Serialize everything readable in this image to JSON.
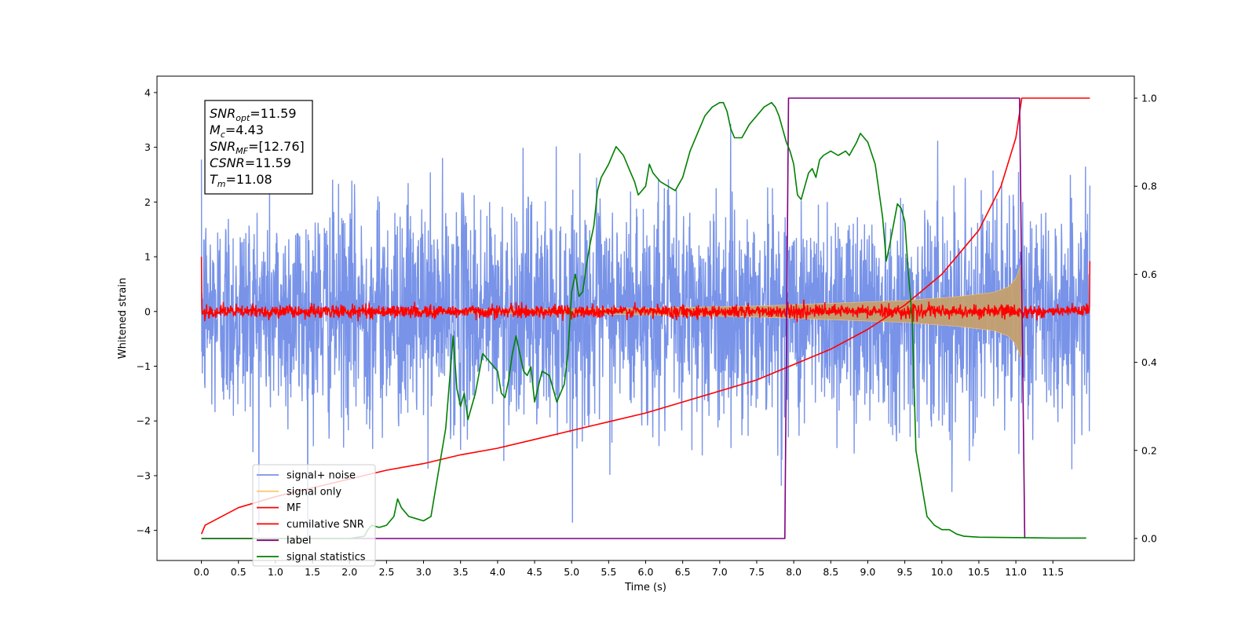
{
  "chart_data": {
    "type": "line",
    "xlabel": "Time (s)",
    "ylabel": "Whitened strain",
    "xlim": [
      -0.6,
      12.6
    ],
    "ylim": [
      -4.55,
      4.3
    ],
    "y2lim": [
      -0.05,
      1.05
    ],
    "x_ticks": [
      "0.0",
      "0.5",
      "1.0",
      "1.5",
      "2.0",
      "2.5",
      "3.0",
      "3.5",
      "4.0",
      "4.5",
      "5.0",
      "5.5",
      "6.0",
      "6.5",
      "7.0",
      "7.5",
      "8.0",
      "8.5",
      "9.0",
      "9.5",
      "10.0",
      "10.5",
      "11.0",
      "11.5"
    ],
    "y_ticks": [
      "−4",
      "−3",
      "−2",
      "−1",
      "0",
      "1",
      "2",
      "3",
      "4"
    ],
    "y2_ticks": [
      "0.0",
      "0.2",
      "0.4",
      "0.6",
      "0.8",
      "1.0"
    ],
    "grid": false,
    "legend_position": "lower-left",
    "legend": [
      {
        "label": "signal+ noise",
        "color": "#7893e8"
      },
      {
        "label": "signal only",
        "color": "#ffc870"
      },
      {
        "label": "MF",
        "color": "#ff0000"
      },
      {
        "label": "cumilative SNR",
        "color": "#ff0000"
      },
      {
        "label": "label",
        "color": "#800080"
      },
      {
        "label": "signal statistics",
        "color": "#008000"
      }
    ],
    "info_box": [
      {
        "main": "SNR",
        "sub": "opt",
        "rest": "=11.59"
      },
      {
        "main": "M",
        "sub": "c",
        "rest": "=4.43"
      },
      {
        "main": "SNR",
        "sub": "MF",
        "rest": "=[12.76]"
      },
      {
        "main": "CSNR",
        "sub": "",
        "rest": "=11.59"
      },
      {
        "main": "T",
        "sub": "m",
        "rest": "=11.08"
      }
    ],
    "series": [
      {
        "name": "signal+ noise",
        "axis": "left",
        "color": "#7893e8",
        "kind": "noise",
        "x_start": 0.0,
        "x_end": 12.0,
        "amplitude_sigma": 1.0,
        "envelope_min": 2.2,
        "envelope_max": 3.9
      },
      {
        "name": "signal only",
        "axis": "left",
        "color": "#ffc870",
        "kind": "chirp_envelope",
        "envelope": [
          [
            0.0,
            0.0
          ],
          [
            3.0,
            0.02
          ],
          [
            6.0,
            0.06
          ],
          [
            7.5,
            0.1
          ],
          [
            8.5,
            0.15
          ],
          [
            9.5,
            0.2
          ],
          [
            10.2,
            0.27
          ],
          [
            10.7,
            0.35
          ],
          [
            10.9,
            0.45
          ],
          [
            11.0,
            0.6
          ],
          [
            11.08,
            0.9
          ],
          [
            11.1,
            0.0
          ]
        ]
      },
      {
        "name": "MF",
        "axis": "left",
        "color": "#ff0000",
        "kind": "mf",
        "x_start": 0.0,
        "x_end": 12.0,
        "start_value": 1.0,
        "end_value": 0.92,
        "noise_sigma": 0.06
      },
      {
        "name": "cumilative SNR",
        "axis": "right",
        "color": "#ff0000",
        "points": [
          [
            0.0,
            0.01
          ],
          [
            0.05,
            0.03
          ],
          [
            0.5,
            0.07
          ],
          [
            1.0,
            0.095
          ],
          [
            1.5,
            0.115
          ],
          [
            2.0,
            0.135
          ],
          [
            2.5,
            0.155
          ],
          [
            3.0,
            0.17
          ],
          [
            3.5,
            0.19
          ],
          [
            4.0,
            0.205
          ],
          [
            4.5,
            0.225
          ],
          [
            5.0,
            0.245
          ],
          [
            5.5,
            0.265
          ],
          [
            6.0,
            0.285
          ],
          [
            6.5,
            0.31
          ],
          [
            7.0,
            0.335
          ],
          [
            7.5,
            0.36
          ],
          [
            8.0,
            0.395
          ],
          [
            8.5,
            0.43
          ],
          [
            9.0,
            0.475
          ],
          [
            9.5,
            0.53
          ],
          [
            10.0,
            0.6
          ],
          [
            10.5,
            0.7
          ],
          [
            10.8,
            0.8
          ],
          [
            11.0,
            0.91
          ],
          [
            11.08,
            1.0
          ],
          [
            12.0,
            1.0
          ]
        ]
      },
      {
        "name": "label",
        "axis": "right",
        "color": "#800080",
        "points": [
          [
            0.0,
            0.0
          ],
          [
            7.88,
            0.0
          ],
          [
            7.93,
            1.0
          ],
          [
            11.05,
            1.0
          ],
          [
            11.12,
            0.0
          ]
        ]
      },
      {
        "name": "signal statistics",
        "axis": "right",
        "color": "#008000",
        "points": [
          [
            0.0,
            0.0
          ],
          [
            1.0,
            0.0
          ],
          [
            2.0,
            0.0
          ],
          [
            2.2,
            0.005
          ],
          [
            2.25,
            0.02
          ],
          [
            2.3,
            0.03
          ],
          [
            2.4,
            0.025
          ],
          [
            2.5,
            0.03
          ],
          [
            2.6,
            0.05
          ],
          [
            2.65,
            0.09
          ],
          [
            2.7,
            0.07
          ],
          [
            2.8,
            0.05
          ],
          [
            2.9,
            0.045
          ],
          [
            3.0,
            0.04
          ],
          [
            3.1,
            0.05
          ],
          [
            3.15,
            0.1
          ],
          [
            3.2,
            0.15
          ],
          [
            3.3,
            0.25
          ],
          [
            3.4,
            0.46
          ],
          [
            3.45,
            0.34
          ],
          [
            3.5,
            0.3
          ],
          [
            3.55,
            0.33
          ],
          [
            3.6,
            0.27
          ],
          [
            3.7,
            0.33
          ],
          [
            3.8,
            0.42
          ],
          [
            3.9,
            0.4
          ],
          [
            4.0,
            0.38
          ],
          [
            4.05,
            0.33
          ],
          [
            4.1,
            0.32
          ],
          [
            4.15,
            0.36
          ],
          [
            4.2,
            0.42
          ],
          [
            4.25,
            0.46
          ],
          [
            4.3,
            0.42
          ],
          [
            4.35,
            0.38
          ],
          [
            4.4,
            0.37
          ],
          [
            4.45,
            0.39
          ],
          [
            4.5,
            0.31
          ],
          [
            4.6,
            0.38
          ],
          [
            4.7,
            0.37
          ],
          [
            4.75,
            0.34
          ],
          [
            4.8,
            0.31
          ],
          [
            4.85,
            0.33
          ],
          [
            4.9,
            0.35
          ],
          [
            4.95,
            0.42
          ],
          [
            5.0,
            0.56
          ],
          [
            5.05,
            0.6
          ],
          [
            5.1,
            0.55
          ],
          [
            5.15,
            0.56
          ],
          [
            5.2,
            0.62
          ],
          [
            5.25,
            0.67
          ],
          [
            5.3,
            0.71
          ],
          [
            5.35,
            0.79
          ],
          [
            5.4,
            0.82
          ],
          [
            5.5,
            0.85
          ],
          [
            5.6,
            0.89
          ],
          [
            5.7,
            0.87
          ],
          [
            5.8,
            0.83
          ],
          [
            5.85,
            0.81
          ],
          [
            5.9,
            0.78
          ],
          [
            6.0,
            0.8
          ],
          [
            6.05,
            0.85
          ],
          [
            6.1,
            0.83
          ],
          [
            6.15,
            0.82
          ],
          [
            6.2,
            0.81
          ],
          [
            6.3,
            0.8
          ],
          [
            6.4,
            0.79
          ],
          [
            6.5,
            0.82
          ],
          [
            6.6,
            0.88
          ],
          [
            6.7,
            0.92
          ],
          [
            6.8,
            0.96
          ],
          [
            6.9,
            0.98
          ],
          [
            7.0,
            0.99
          ],
          [
            7.05,
            0.99
          ],
          [
            7.1,
            0.97
          ],
          [
            7.15,
            0.93
          ],
          [
            7.2,
            0.91
          ],
          [
            7.3,
            0.91
          ],
          [
            7.4,
            0.94
          ],
          [
            7.5,
            0.96
          ],
          [
            7.6,
            0.98
          ],
          [
            7.7,
            0.99
          ],
          [
            7.75,
            0.98
          ],
          [
            7.8,
            0.96
          ],
          [
            7.85,
            0.93
          ],
          [
            7.9,
            0.9
          ],
          [
            7.95,
            0.88
          ],
          [
            8.0,
            0.85
          ],
          [
            8.05,
            0.78
          ],
          [
            8.1,
            0.77
          ],
          [
            8.15,
            0.8
          ],
          [
            8.2,
            0.83
          ],
          [
            8.25,
            0.84
          ],
          [
            8.3,
            0.82
          ],
          [
            8.35,
            0.86
          ],
          [
            8.4,
            0.87
          ],
          [
            8.5,
            0.88
          ],
          [
            8.6,
            0.87
          ],
          [
            8.7,
            0.88
          ],
          [
            8.75,
            0.87
          ],
          [
            8.85,
            0.9
          ],
          [
            8.9,
            0.92
          ],
          [
            9.0,
            0.9
          ],
          [
            9.1,
            0.85
          ],
          [
            9.2,
            0.73
          ],
          [
            9.25,
            0.63
          ],
          [
            9.3,
            0.67
          ],
          [
            9.4,
            0.76
          ],
          [
            9.45,
            0.75
          ],
          [
            9.5,
            0.72
          ],
          [
            9.55,
            0.6
          ],
          [
            9.6,
            0.5
          ],
          [
            9.65,
            0.2
          ],
          [
            9.7,
            0.15
          ],
          [
            9.75,
            0.1
          ],
          [
            9.8,
            0.05
          ],
          [
            9.9,
            0.03
          ],
          [
            10.0,
            0.02
          ],
          [
            10.1,
            0.02
          ],
          [
            10.2,
            0.01
          ],
          [
            10.3,
            0.005
          ],
          [
            10.5,
            0.003
          ],
          [
            11.0,
            0.002
          ],
          [
            11.5,
            0.001
          ],
          [
            11.95,
            0.001
          ]
        ]
      }
    ]
  }
}
